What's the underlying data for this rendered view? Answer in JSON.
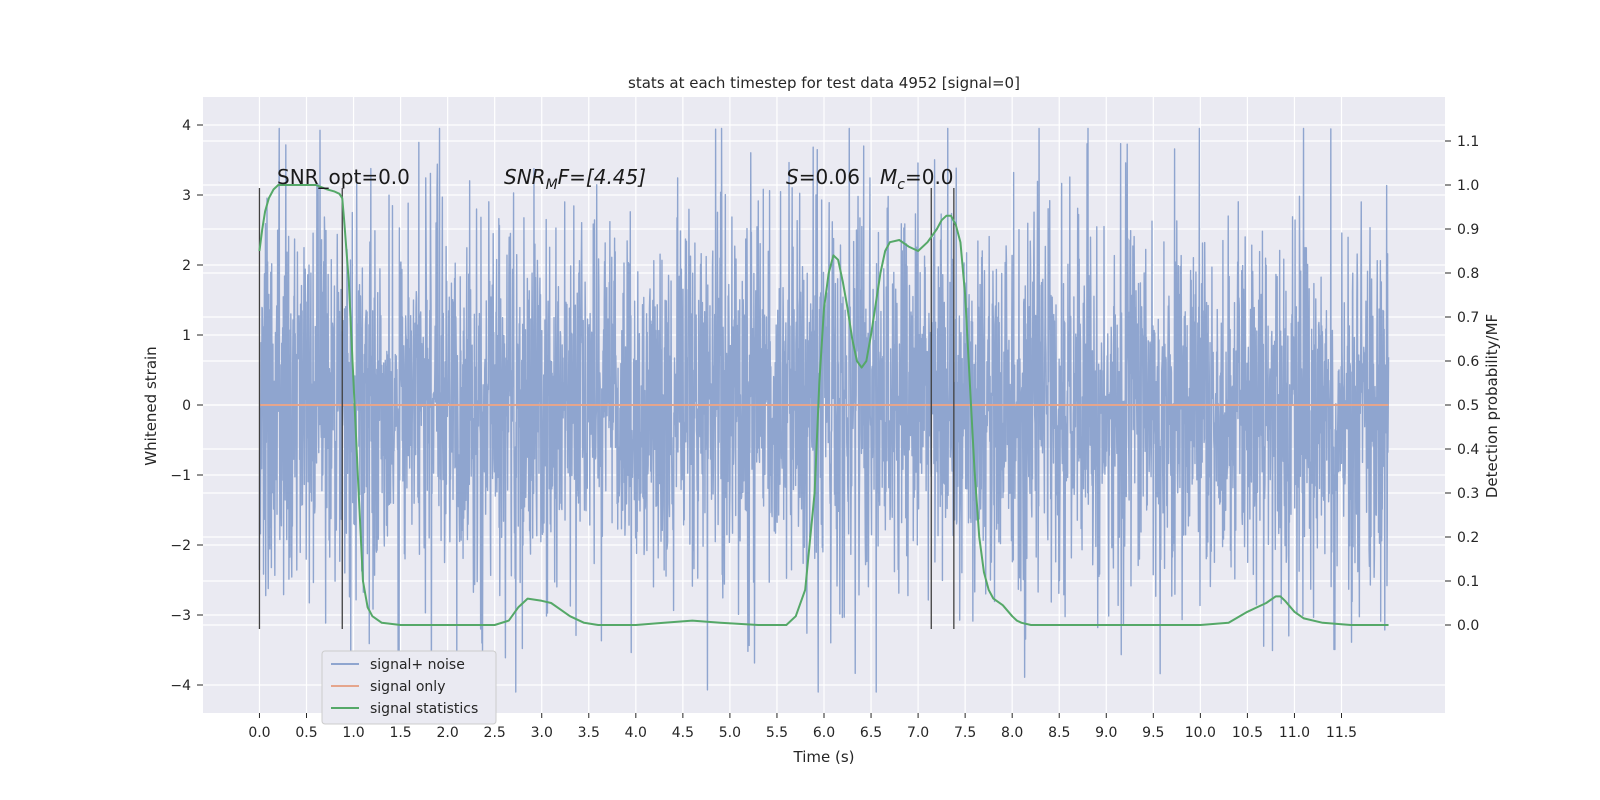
{
  "chart_data": {
    "type": "line",
    "title": "stats at each timestep for test data 4952 [signal=0]",
    "xlabel": "Time (s)",
    "ylabel_left": "Whitened strain",
    "ylabel_right": "Detection probability/MF",
    "xlim": [
      -0.6,
      12.6
    ],
    "ylim_left": [
      -4.4,
      4.4
    ],
    "ylim_right": [
      -0.2,
      1.2
    ],
    "xticks": [
      0.0,
      0.5,
      1.0,
      1.5,
      2.0,
      2.5,
      3.0,
      3.5,
      4.0,
      4.5,
      5.0,
      5.5,
      6.0,
      6.5,
      7.0,
      7.5,
      8.0,
      8.5,
      9.0,
      9.5,
      10.0,
      10.5,
      11.0,
      11.5
    ],
    "xtick_labels": [
      "0.0",
      "0.5",
      "1.0",
      "1.5",
      "2.0",
      "2.5",
      "3.0",
      "3.5",
      "4.0",
      "4.5",
      "5.0",
      "5.5",
      "6.0",
      "6.5",
      "7.0",
      "7.5",
      "8.0",
      "8.5",
      "9.0",
      "9.5",
      "10.0",
      "10.5",
      "11.0",
      "11.5"
    ],
    "yticks_left": [
      -4,
      -3,
      -2,
      -1,
      0,
      1,
      2,
      3,
      4
    ],
    "ytick_labels_left": [
      "−4",
      "−3",
      "−2",
      "−1",
      "0",
      "1",
      "2",
      "3",
      "4"
    ],
    "yticks_right": [
      0.0,
      0.1,
      0.2,
      0.3,
      0.4,
      0.5,
      0.6,
      0.7,
      0.8,
      0.9,
      1.0,
      1.1
    ],
    "ytick_labels_right": [
      "0.0",
      "0.1",
      "0.2",
      "0.3",
      "0.4",
      "0.5",
      "0.6",
      "0.7",
      "0.8",
      "0.9",
      "1.0",
      "1.1"
    ],
    "annotations": {
      "snr_opt": "SNR_opt=0.0",
      "snr_mf_main": "SNR",
      "snr_mf_sub": "M",
      "snr_mf_rest": "F=[4.45]",
      "s_main": "S",
      "s_rest": "=0.06",
      "mc_main": "M",
      "mc_sub": "c",
      "mc_rest": "=0.0"
    },
    "legend": {
      "placement": "lower-left",
      "entries": [
        "signal+ noise",
        "signal only",
        "signal statistics"
      ]
    },
    "colors": {
      "noise": "#8fa5cf",
      "signal": "#e5a58c",
      "stats": "#55a868",
      "vline": "#404040",
      "background": "#eaeaf2",
      "grid": "#ffffff"
    },
    "grid": true,
    "series": [
      {
        "name": "signal+ noise",
        "axis": "left",
        "kind": "noise",
        "t_range": [
          0.0,
          12.0
        ],
        "typical_amplitude": 2.1,
        "peak_max": 3.95,
        "peak_min": -4.1
      },
      {
        "name": "signal only",
        "axis": "left",
        "x": [
          0.0,
          12.0
        ],
        "y": [
          0.0,
          0.0
        ]
      },
      {
        "name": "signal statistics",
        "axis": "right",
        "x": [
          0.0,
          0.03,
          0.06,
          0.1,
          0.15,
          0.2,
          0.3,
          0.45,
          0.6,
          0.72,
          0.8,
          0.85,
          0.88,
          0.9,
          0.95,
          1.0,
          1.05,
          1.1,
          1.15,
          1.2,
          1.3,
          1.5,
          2.0,
          2.5,
          2.65,
          2.75,
          2.85,
          3.0,
          3.1,
          3.2,
          3.3,
          3.45,
          3.6,
          4.0,
          4.3,
          4.6,
          4.9,
          5.3,
          5.6,
          5.7,
          5.8,
          5.9,
          5.95,
          6.0,
          6.05,
          6.1,
          6.15,
          6.2,
          6.25,
          6.3,
          6.35,
          6.4,
          6.45,
          6.5,
          6.55,
          6.6,
          6.65,
          6.7,
          6.8,
          6.9,
          7.0,
          7.1,
          7.2,
          7.25,
          7.3,
          7.35,
          7.4,
          7.45,
          7.5,
          7.55,
          7.6,
          7.65,
          7.7,
          7.75,
          7.8,
          7.9,
          8.0,
          8.05,
          8.1,
          8.2,
          8.4,
          9.0,
          10.0,
          10.3,
          10.5,
          10.6,
          10.7,
          10.8,
          10.85,
          10.9,
          11.0,
          11.1,
          11.3,
          11.6,
          12.0
        ],
        "y": [
          0.85,
          0.9,
          0.94,
          0.97,
          0.99,
          1.0,
          1.0,
          1.0,
          1.0,
          0.99,
          0.985,
          0.98,
          0.97,
          0.92,
          0.78,
          0.55,
          0.32,
          0.1,
          0.04,
          0.02,
          0.005,
          0.0,
          0.0,
          0.0,
          0.01,
          0.04,
          0.06,
          0.055,
          0.05,
          0.035,
          0.02,
          0.005,
          0.0,
          0.0,
          0.005,
          0.01,
          0.005,
          0.0,
          0.0,
          0.02,
          0.08,
          0.3,
          0.55,
          0.72,
          0.8,
          0.84,
          0.83,
          0.78,
          0.72,
          0.65,
          0.6,
          0.585,
          0.6,
          0.66,
          0.73,
          0.8,
          0.85,
          0.87,
          0.875,
          0.86,
          0.85,
          0.87,
          0.9,
          0.92,
          0.93,
          0.93,
          0.91,
          0.87,
          0.75,
          0.55,
          0.35,
          0.2,
          0.12,
          0.08,
          0.06,
          0.045,
          0.02,
          0.01,
          0.005,
          0.0,
          0.0,
          0.0,
          0.0,
          0.005,
          0.03,
          0.04,
          0.05,
          0.065,
          0.065,
          0.055,
          0.03,
          0.015,
          0.005,
          0.0,
          0.0
        ]
      }
    ],
    "vertical_lines": [
      {
        "x": 0.0,
        "y_range": [
          -3.2,
          3.1
        ]
      },
      {
        "x": 0.88,
        "y_range": [
          -3.2,
          3.1
        ]
      },
      {
        "x": 7.14,
        "y_range": [
          -3.2,
          3.1
        ]
      },
      {
        "x": 7.38,
        "y_range": [
          -3.2,
          3.1
        ]
      }
    ]
  }
}
